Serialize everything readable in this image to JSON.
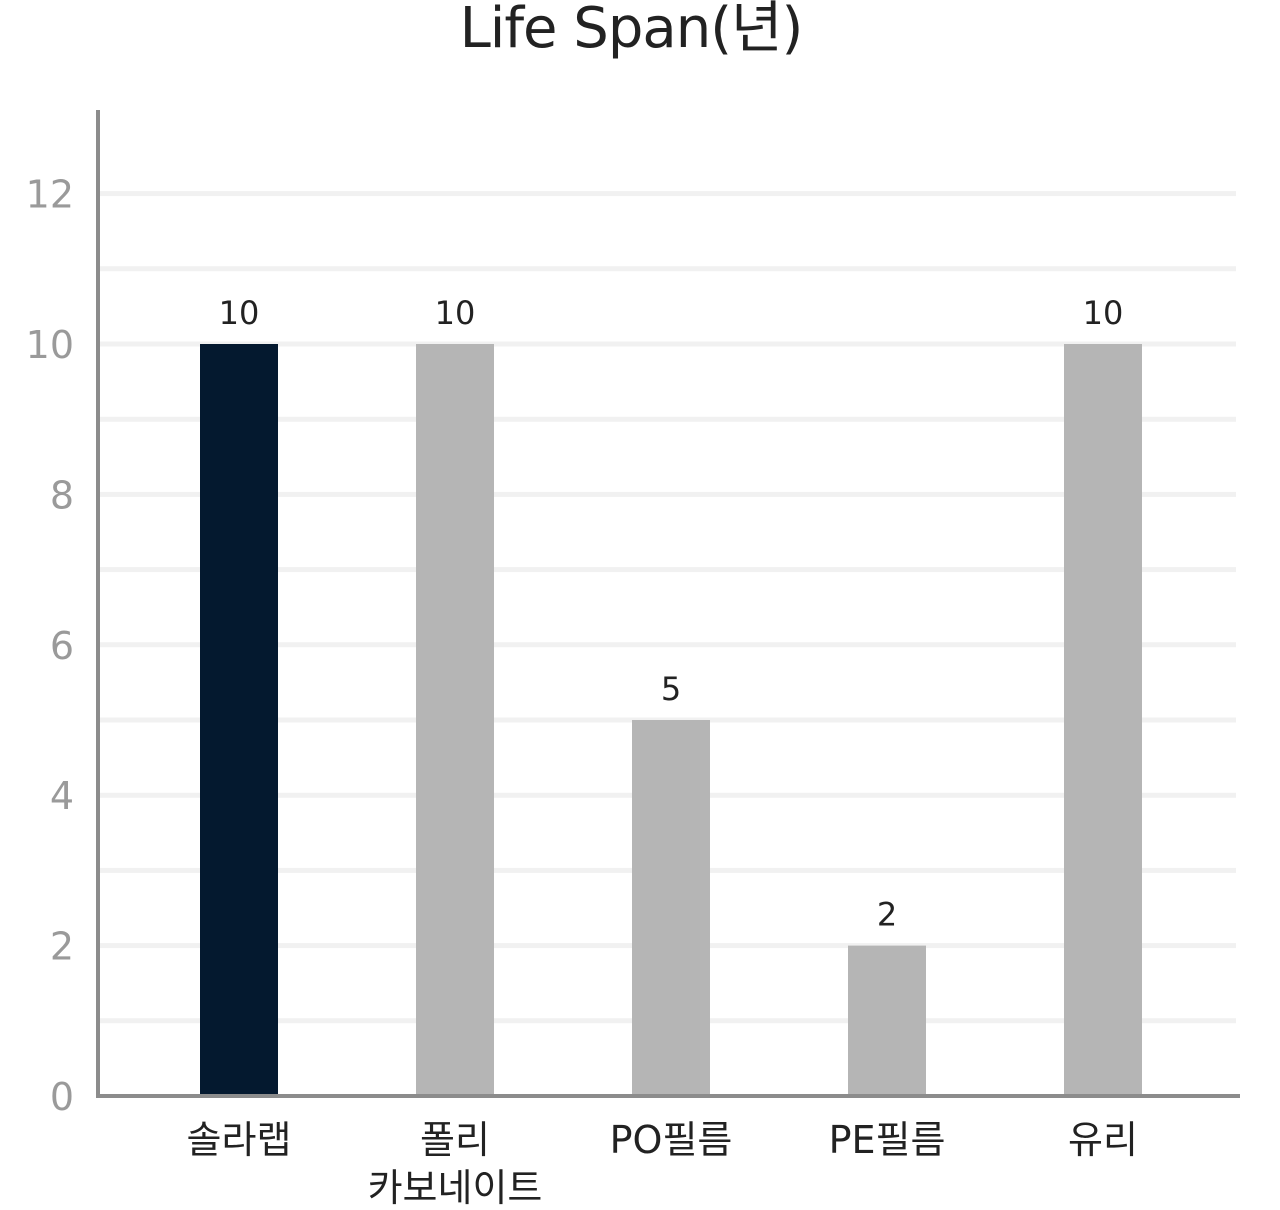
{
  "chart_data": {
    "type": "bar",
    "title": "Life Span(년)",
    "categories": [
      [
        "솔라랩"
      ],
      [
        "폴리",
        "카보네이트"
      ],
      [
        "PO필름"
      ],
      [
        "PE필름"
      ],
      [
        "유리"
      ]
    ],
    "values": [
      10,
      10,
      5,
      2,
      10
    ],
    "data_labels": [
      "10",
      "10",
      "5",
      "2",
      "10"
    ],
    "bar_colors": [
      "#04192f",
      "#b5b5b5",
      "#b5b5b5",
      "#b5b5b5",
      "#b5b5b5"
    ],
    "ylim": [
      0,
      13
    ],
    "y_ticks": [
      0,
      2,
      4,
      6,
      8,
      10,
      12
    ],
    "y_tick_labels": [
      "0",
      "2",
      "4",
      "6",
      "8",
      "10",
      "12"
    ],
    "minor_gridlines": [
      1,
      3,
      5,
      7,
      9,
      11
    ],
    "grid": true,
    "xlabel": "",
    "ylabel": "",
    "colors": {
      "highlight": "#04192f",
      "default_bar": "#b5b5b5",
      "axis": "#8c8c8c",
      "grid": "#f1f1f1"
    }
  }
}
